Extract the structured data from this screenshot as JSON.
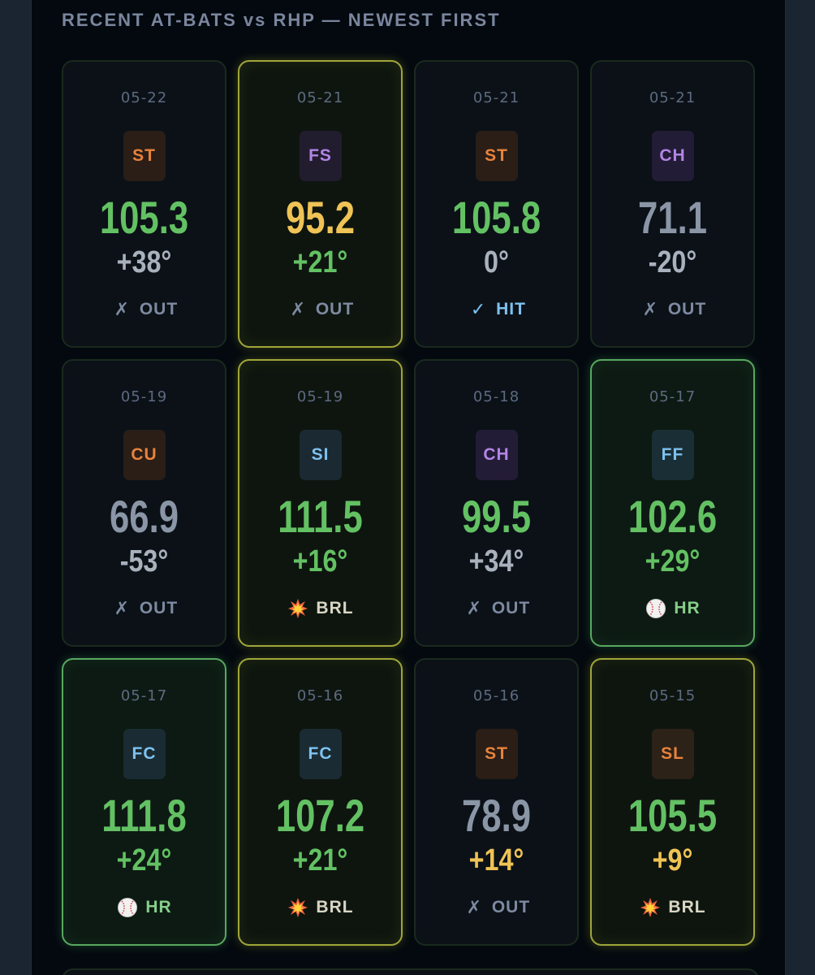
{
  "header": {
    "title": "RECENT AT-BATS vs RHP — NEWEST FIRST"
  },
  "colors": {
    "ev_good": "#63c163",
    "ev_mid": "#efc355",
    "ev_low": "#8a95a6",
    "la_good": "#63c163",
    "la_mid": "#efc355",
    "la_low": "#a9b1bd",
    "out": "#7d8aa0",
    "hit": "#7ec2f0",
    "brl": "#d9d6c4",
    "hr": "#86cf8a"
  },
  "pitch_styles": {
    "ST": {
      "fg": "#e8823c",
      "bg": "#2a1e17"
    },
    "FS": {
      "fg": "#b385e6",
      "bg": "#211d2e"
    },
    "CH": {
      "fg": "#b385e6",
      "bg": "#231c36"
    },
    "CU": {
      "fg": "#e8823c",
      "bg": "#2a1e17"
    },
    "SI": {
      "fg": "#7ec2f0",
      "bg": "#1b2932"
    },
    "FF": {
      "fg": "#7ec2f0",
      "bg": "#1a2e35"
    },
    "FC": {
      "fg": "#7ec2f0",
      "bg": "#1a2b33"
    },
    "SL": {
      "fg": "#e8823c",
      "bg": "#2c2218"
    }
  },
  "at_bats": [
    {
      "date": "05-22",
      "pitch": "ST",
      "ev": "105.3",
      "la": "+38°",
      "result": "OUT",
      "result_icon": "✗",
      "ev_tier": "good",
      "la_tier": "low",
      "highlight": "none"
    },
    {
      "date": "05-21",
      "pitch": "FS",
      "ev": "95.2",
      "la": "+21°",
      "result": "OUT",
      "result_icon": "✗",
      "ev_tier": "mid",
      "la_tier": "good",
      "highlight": "brl"
    },
    {
      "date": "05-21",
      "pitch": "ST",
      "ev": "105.8",
      "la": "0°",
      "result": "HIT",
      "result_icon": "✓",
      "ev_tier": "good",
      "la_tier": "low",
      "highlight": "none"
    },
    {
      "date": "05-21",
      "pitch": "CH",
      "ev": "71.1",
      "la": "-20°",
      "result": "OUT",
      "result_icon": "✗",
      "ev_tier": "low",
      "la_tier": "low",
      "highlight": "none"
    },
    {
      "date": "05-19",
      "pitch": "CU",
      "ev": "66.9",
      "la": "-53°",
      "result": "OUT",
      "result_icon": "✗",
      "ev_tier": "low",
      "la_tier": "low",
      "highlight": "none"
    },
    {
      "date": "05-19",
      "pitch": "SI",
      "ev": "111.5",
      "la": "+16°",
      "result": "BRL",
      "result_icon": "💥",
      "ev_tier": "good",
      "la_tier": "good",
      "highlight": "brl"
    },
    {
      "date": "05-18",
      "pitch": "CH",
      "ev": "99.5",
      "la": "+34°",
      "result": "OUT",
      "result_icon": "✗",
      "ev_tier": "good",
      "la_tier": "low",
      "highlight": "none"
    },
    {
      "date": "05-17",
      "pitch": "FF",
      "ev": "102.6",
      "la": "+29°",
      "result": "HR",
      "result_icon": "⚾",
      "ev_tier": "good",
      "la_tier": "good",
      "highlight": "hr"
    },
    {
      "date": "05-17",
      "pitch": "FC",
      "ev": "111.8",
      "la": "+24°",
      "result": "HR",
      "result_icon": "⚾",
      "ev_tier": "good",
      "la_tier": "good",
      "highlight": "hr"
    },
    {
      "date": "05-16",
      "pitch": "FC",
      "ev": "107.2",
      "la": "+21°",
      "result": "BRL",
      "result_icon": "💥",
      "ev_tier": "good",
      "la_tier": "good",
      "highlight": "brl"
    },
    {
      "date": "05-16",
      "pitch": "ST",
      "ev": "78.9",
      "la": "+14°",
      "result": "OUT",
      "result_icon": "✗",
      "ev_tier": "low",
      "la_tier": "mid",
      "highlight": "none"
    },
    {
      "date": "05-15",
      "pitch": "SL",
      "ev": "105.5",
      "la": "+9°",
      "result": "BRL",
      "result_icon": "💥",
      "ev_tier": "good",
      "la_tier": "mid",
      "highlight": "brl"
    }
  ]
}
